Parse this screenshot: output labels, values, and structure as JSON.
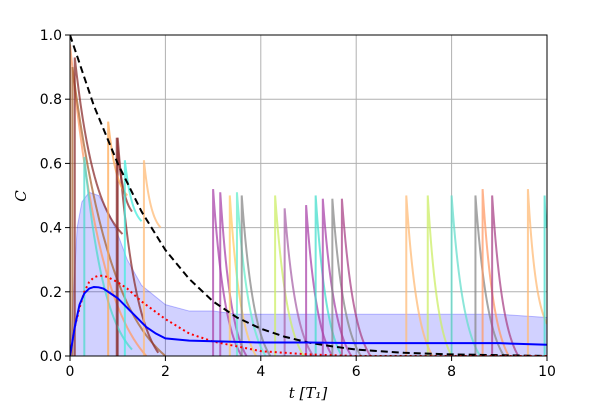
{
  "chart_data": {
    "type": "line",
    "title": "",
    "xlabel": "t [T₁]",
    "ylabel": "C",
    "xlim": [
      0,
      10
    ],
    "ylim": [
      0,
      1
    ],
    "xticks": [
      0,
      2,
      4,
      6,
      8,
      10
    ],
    "yticks": [
      0.0,
      0.2,
      0.4,
      0.6,
      0.8,
      1.0
    ],
    "xtick_labels": [
      "0",
      "2",
      "4",
      "6",
      "8",
      "10"
    ],
    "ytick_labels": [
      "0.0",
      "0.2",
      "0.4",
      "0.6",
      "0.8",
      "1.0"
    ],
    "grid": true,
    "legend": "none",
    "series": [
      {
        "style": "dashed",
        "color": "#000000",
        "x": [
          0,
          0.5,
          1,
          1.5,
          2,
          2.5,
          3,
          3.5,
          4,
          4.5,
          5,
          5.5,
          6,
          7,
          8,
          10
        ],
        "y": [
          1.0,
          0.78,
          0.6,
          0.45,
          0.33,
          0.24,
          0.17,
          0.12,
          0.085,
          0.06,
          0.042,
          0.03,
          0.02,
          0.01,
          0.005,
          0.0
        ]
      },
      {
        "style": "dotted",
        "color": "#ff0000",
        "x": [
          0,
          0.1,
          0.2,
          0.3,
          0.4,
          0.5,
          0.6,
          0.7,
          0.8,
          1.0,
          1.2,
          1.5,
          2,
          2.5,
          3,
          3.5,
          4,
          5,
          6,
          10
        ],
        "y": [
          0.0,
          0.09,
          0.15,
          0.2,
          0.23,
          0.245,
          0.25,
          0.25,
          0.245,
          0.23,
          0.21,
          0.17,
          0.115,
          0.07,
          0.045,
          0.03,
          0.015,
          0.005,
          0.0,
          0.0
        ]
      },
      {
        "style": "solid",
        "color": "#0000ff",
        "x": [
          0,
          0.1,
          0.2,
          0.3,
          0.4,
          0.5,
          0.6,
          0.7,
          0.8,
          0.9,
          1.0,
          1.2,
          1.4,
          1.6,
          1.8,
          2.0,
          2.5,
          3,
          4,
          5,
          6,
          7,
          8,
          9,
          10
        ],
        "y": [
          0.0,
          0.09,
          0.16,
          0.195,
          0.21,
          0.215,
          0.214,
          0.21,
          0.2,
          0.19,
          0.18,
          0.15,
          0.12,
          0.09,
          0.07,
          0.055,
          0.048,
          0.046,
          0.042,
          0.042,
          0.04,
          0.04,
          0.04,
          0.04,
          0.035
        ]
      }
    ],
    "band": {
      "color": "#0000ff",
      "x": [
        0,
        0.15,
        0.25,
        0.4,
        0.6,
        0.8,
        1.0,
        1.2,
        1.5,
        2.0,
        2.5,
        3,
        3.5,
        4,
        5,
        6,
        7,
        8,
        9,
        10
      ],
      "y": [
        0.0,
        0.4,
        0.48,
        0.51,
        0.5,
        0.45,
        0.38,
        0.3,
        0.22,
        0.16,
        0.14,
        0.14,
        0.13,
        0.13,
        0.13,
        0.13,
        0.13,
        0.13,
        0.13,
        0.12
      ]
    },
    "trajectories": [
      {
        "color": "#ff9966",
        "segments": [
          [
            0.0,
            0.97,
            1.6,
            0.0
          ]
        ]
      },
      {
        "color": "#aa6633",
        "segments": [
          [
            0.05,
            0.9,
            2.0,
            0.0
          ]
        ]
      },
      {
        "color": "#8b2d2d",
        "segments": [
          [
            0.1,
            0.93,
            1.1,
            0.38
          ],
          [
            1.0,
            0.68,
            1.85,
            0.01
          ]
        ]
      },
      {
        "color": "#4dd9cc",
        "segments": [
          [
            0.3,
            0.62,
            1.3,
            0.02
          ]
        ]
      },
      {
        "color": "#ffaa55",
        "segments": [
          [
            0.8,
            0.73,
            1.2,
            0.5
          ]
        ]
      },
      {
        "color": "#8b2d2d",
        "segments": [
          [
            0.98,
            0.68,
            1.3,
            0.45
          ]
        ]
      },
      {
        "color": "#44eedd",
        "segments": [
          [
            1.15,
            0.61,
            1.5,
            0.42
          ]
        ]
      },
      {
        "color": "#ffbb77",
        "segments": [
          [
            1.55,
            0.61,
            1.9,
            0.4
          ]
        ]
      },
      {
        "color": "#aa44aa",
        "segments": [
          [
            3.0,
            0.52,
            3.6,
            0.0
          ]
        ]
      },
      {
        "color": "#aa44aa",
        "segments": [
          [
            3.15,
            0.51,
            3.7,
            0.0
          ]
        ]
      },
      {
        "color": "#ffcc66",
        "segments": [
          [
            3.35,
            0.5,
            3.9,
            0.0
          ]
        ]
      },
      {
        "color": "#66eecc",
        "segments": [
          [
            3.5,
            0.51,
            4.1,
            0.0
          ]
        ]
      },
      {
        "color": "#888888",
        "segments": [
          [
            3.6,
            0.5,
            4.2,
            0.0
          ]
        ]
      },
      {
        "color": "#ccee66",
        "segments": [
          [
            4.3,
            0.5,
            4.9,
            0.0
          ]
        ]
      },
      {
        "color": "#aa66aa",
        "segments": [
          [
            4.5,
            0.46,
            5.1,
            0.0
          ]
        ]
      },
      {
        "color": "#aa44aa",
        "segments": [
          [
            4.95,
            0.47,
            5.5,
            0.0
          ]
        ]
      },
      {
        "color": "#44ddcc",
        "segments": [
          [
            5.15,
            0.5,
            5.7,
            0.0
          ]
        ]
      },
      {
        "color": "#aa44aa",
        "segments": [
          [
            5.3,
            0.49,
            5.9,
            0.0
          ]
        ]
      },
      {
        "color": "#888888",
        "segments": [
          [
            5.5,
            0.49,
            6.1,
            0.0
          ]
        ]
      },
      {
        "color": "#aa4488",
        "segments": [
          [
            5.7,
            0.49,
            6.3,
            0.0
          ]
        ]
      },
      {
        "color": "#ffbb77",
        "segments": [
          [
            7.05,
            0.5,
            7.6,
            0.0
          ]
        ]
      },
      {
        "color": "#ccee66",
        "segments": [
          [
            7.5,
            0.5,
            8.0,
            0.0
          ]
        ]
      },
      {
        "color": "#66ddcc",
        "segments": [
          [
            8.0,
            0.5,
            8.6,
            0.0
          ]
        ]
      },
      {
        "color": "#888888",
        "segments": [
          [
            8.5,
            0.5,
            9.1,
            0.0
          ]
        ]
      },
      {
        "color": "#ff9966",
        "segments": [
          [
            8.65,
            0.52,
            9.2,
            0.0
          ]
        ]
      },
      {
        "color": "#aa4488",
        "segments": [
          [
            8.85,
            0.5,
            9.4,
            0.0
          ]
        ]
      },
      {
        "color": "#ffbb77",
        "segments": [
          [
            9.6,
            0.52,
            10.0,
            0.1
          ]
        ]
      },
      {
        "color": "#44ddcc",
        "segments": [
          [
            9.95,
            0.5,
            10.0,
            0.4
          ]
        ]
      }
    ]
  }
}
